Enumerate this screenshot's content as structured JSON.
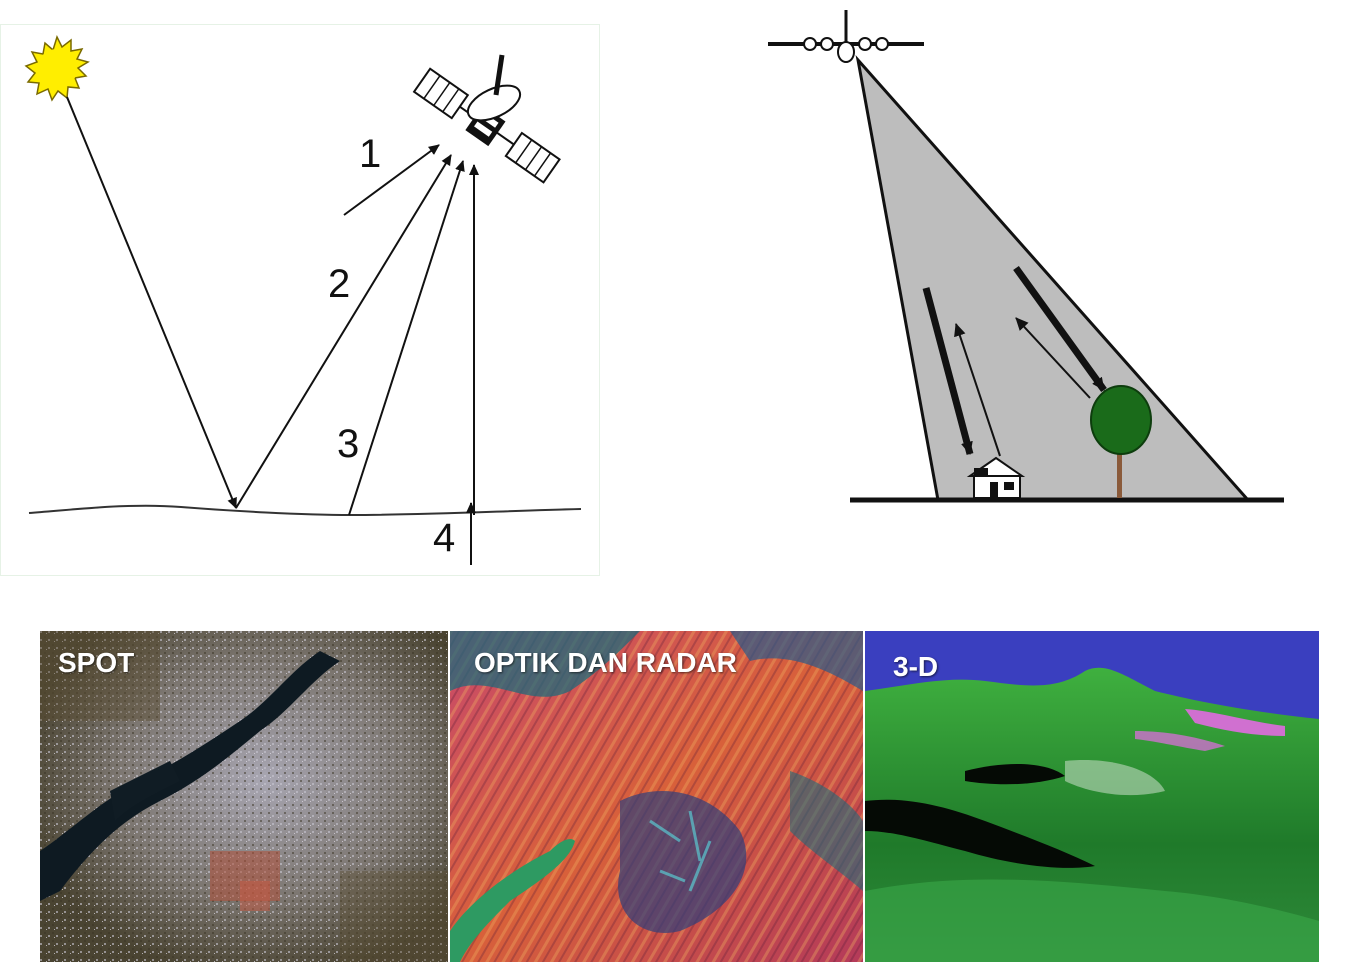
{
  "diagram_passive": {
    "labels": [
      "1",
      "2",
      "3",
      "4"
    ]
  },
  "panels": [
    {
      "label": "SPOT"
    },
    {
      "label": "OPTIK DAN RADAR"
    },
    {
      "label": "3-D"
    }
  ],
  "colors": {
    "sun": "#ffee00",
    "beam": "#bdbdbd",
    "tree": "#1a6b1a",
    "sky_3d": "#3a3fbf"
  }
}
